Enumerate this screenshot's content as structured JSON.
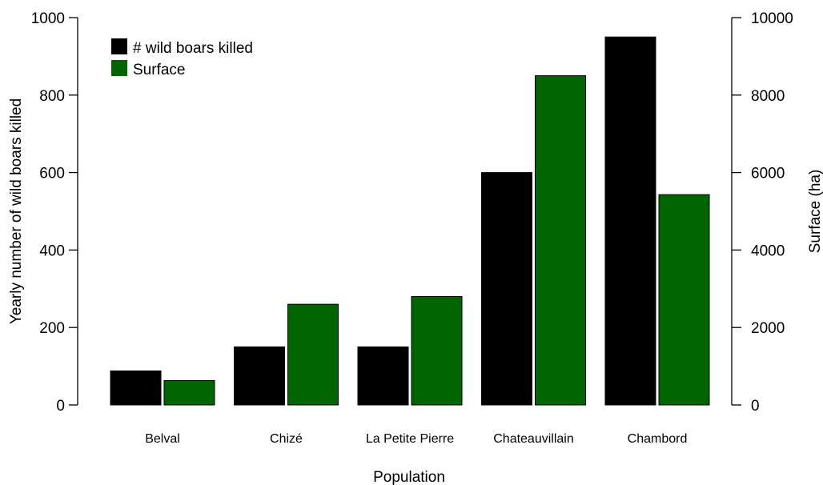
{
  "chart_data": {
    "type": "bar",
    "xlabel": "Population",
    "ylabel": "Yearly number of wild boars killed",
    "ylabel_right": "Surface (ha)",
    "categories": [
      "Belval",
      "Chizé",
      "La Petite Pierre",
      "Chateauvillain",
      "Chambord"
    ],
    "series": [
      {
        "name": "# wild boars killed",
        "axis": "left",
        "color": "#000000",
        "values": [
          88,
          150,
          150,
          600,
          950
        ]
      },
      {
        "name": "Surface",
        "axis": "right",
        "color": "#006400",
        "values": [
          630,
          2600,
          2800,
          8500,
          5430
        ]
      }
    ],
    "ylim_left": [
      0,
      1000
    ],
    "yticks_left": [
      "0",
      "200",
      "400",
      "600",
      "800",
      "1000"
    ],
    "ylim_right": [
      0,
      10000
    ],
    "yticks_right": [
      "0",
      "2000",
      "4000",
      "6000",
      "8000",
      "10000"
    ],
    "grid": false,
    "legend_position": "top-left"
  }
}
